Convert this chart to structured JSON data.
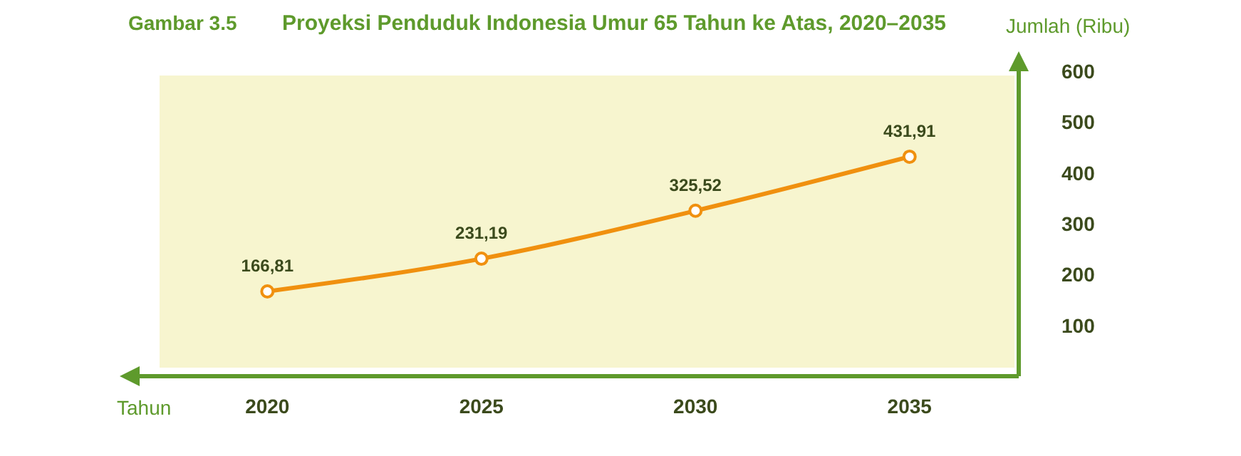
{
  "chart_data": {
    "type": "line",
    "title": "Proyeksi Penduduk Indonesia Umur 65 Tahun ke Atas, 2020–2035",
    "annotations": [
      "Gambar 3.5"
    ],
    "xlabel": "Tahun",
    "ylabel": "Jumlah (Ribu)",
    "categories": [
      "2020",
      "2025",
      "2030",
      "2035"
    ],
    "series": [
      {
        "color": "#f0900f",
        "values": [
          166.81,
          231.19,
          325.52,
          431.91
        ]
      }
    ],
    "value_labels": [
      "166,81",
      "231,19",
      "325,52",
      "431,91"
    ],
    "ylim": [
      0,
      600
    ],
    "yticks": [
      100,
      200,
      300,
      400,
      500,
      600
    ],
    "marker": "circle",
    "line_style": "solid"
  }
}
